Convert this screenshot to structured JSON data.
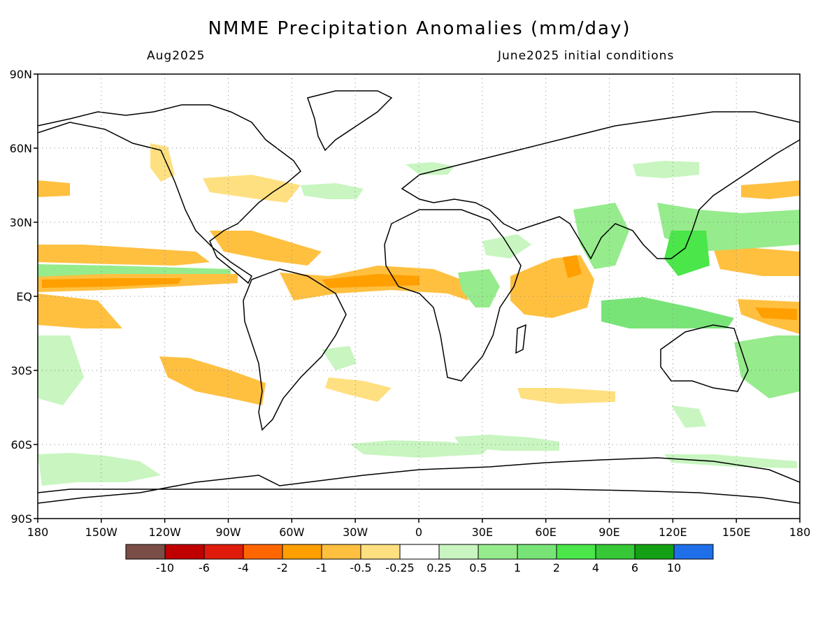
{
  "header": {
    "title": "NMME Precipitation Anomalies (mm/day)",
    "valid_month": "Aug2025",
    "initial_conditions": "June2025 initial conditions"
  },
  "axes": {
    "lat_labels": [
      "90N",
      "60N",
      "30N",
      "EQ",
      "30S",
      "60S",
      "90S"
    ],
    "lon_labels": [
      "180",
      "150W",
      "120W",
      "90W",
      "60W",
      "30W",
      "0",
      "30E",
      "60E",
      "90E",
      "120E",
      "150E",
      "180"
    ]
  },
  "legend": {
    "colors": [
      "#7a4e46",
      "#c00000",
      "#e01b0b",
      "#ff6600",
      "#ff9f00",
      "#ffc040",
      "#ffe080",
      "#ffffff",
      "#c8f5c0",
      "#96eb8c",
      "#78e478",
      "#4ae64a",
      "#36c836",
      "#14a014",
      "#1f6fe8"
    ],
    "labels": [
      "-10",
      "-6",
      "-4",
      "-2",
      "-1",
      "-0.5",
      "-0.25",
      "0.25",
      "0.5",
      "1",
      "2",
      "4",
      "6",
      "10"
    ]
  }
}
